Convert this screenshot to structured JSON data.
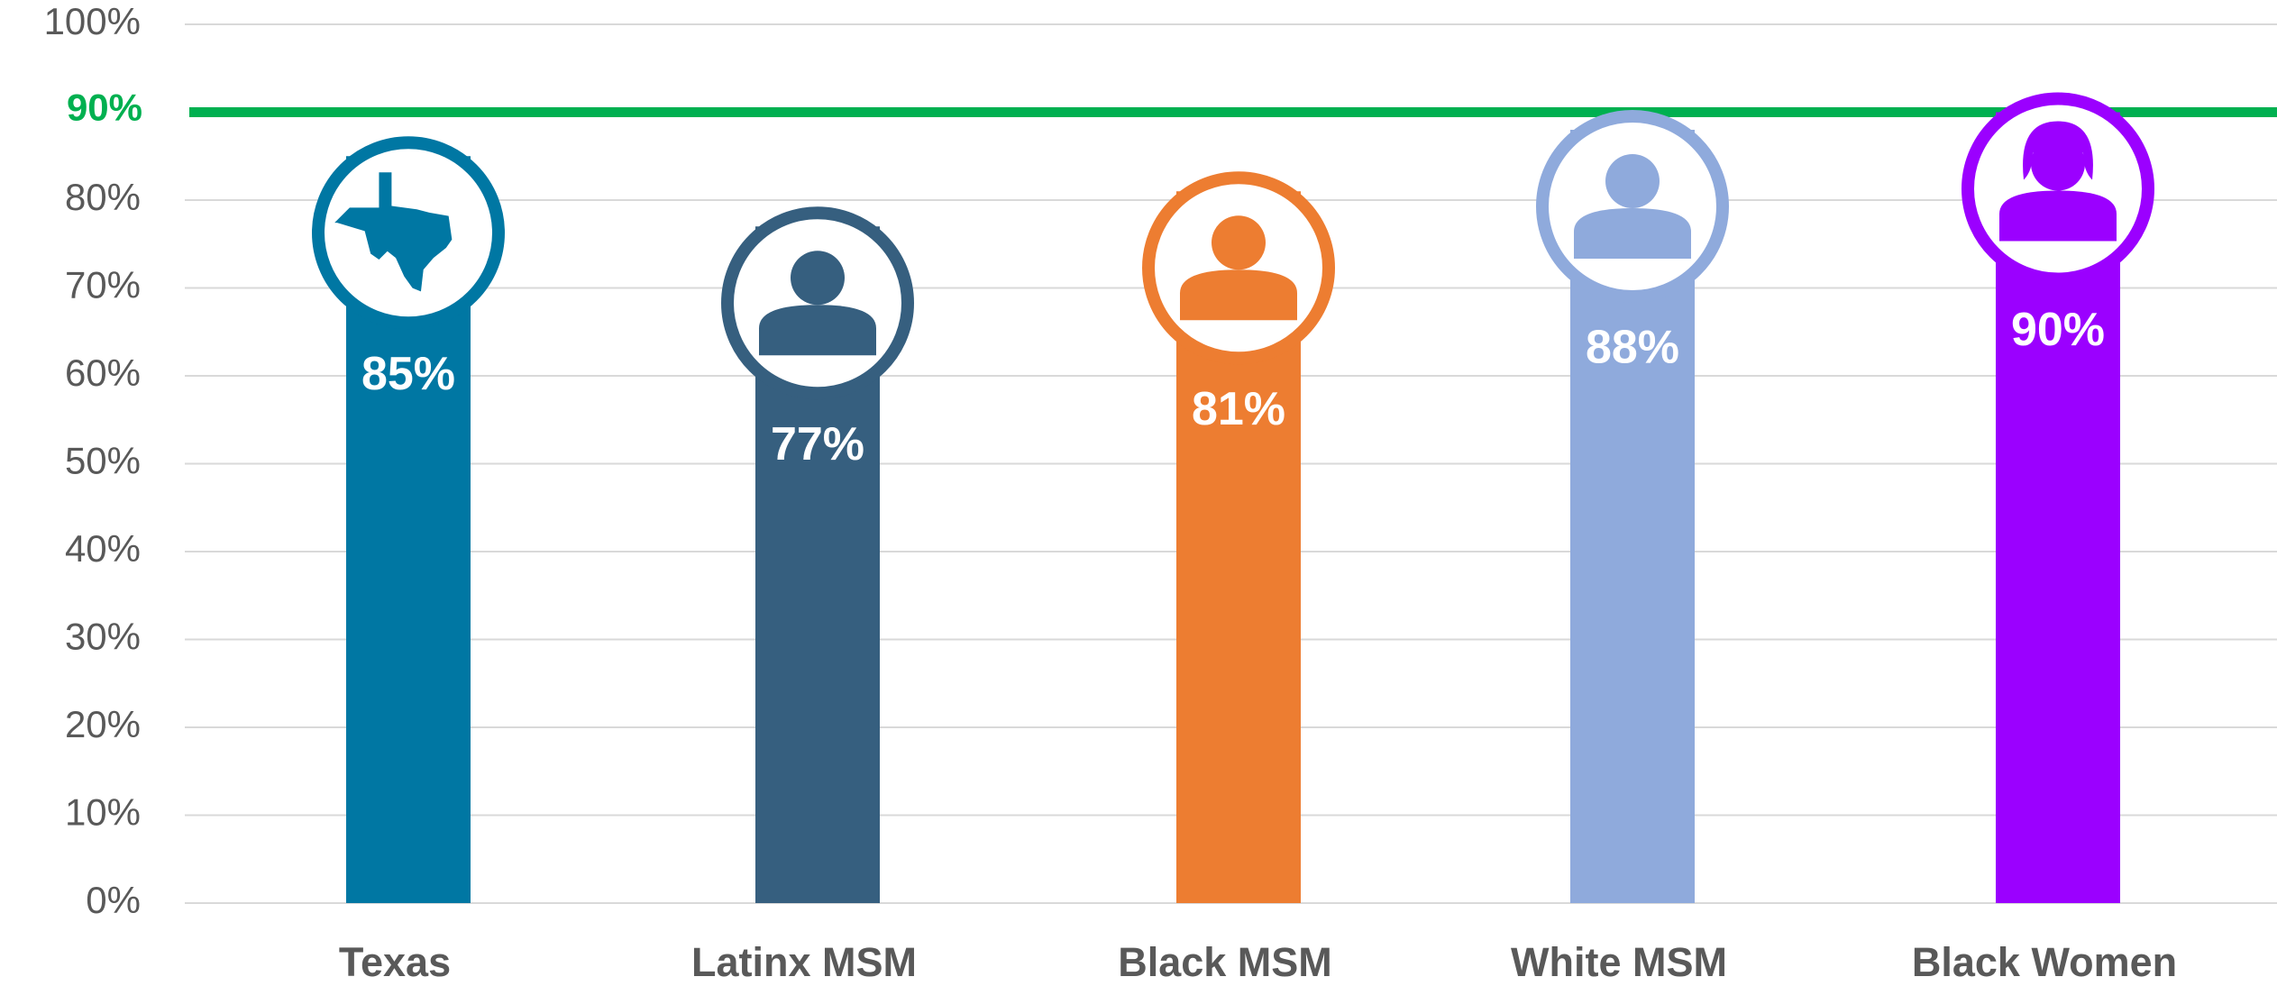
{
  "chart_data": {
    "type": "bar",
    "categories": [
      "Texas",
      "Latinx MSM",
      "Black MSM",
      "White MSM",
      "Black Women"
    ],
    "values": [
      85,
      77,
      81,
      88,
      90
    ],
    "value_labels": [
      "85%",
      "77%",
      "81%",
      "88%",
      "90%"
    ],
    "colors": [
      "#0077a3",
      "#365f7f",
      "#ed7d31",
      "#8faadc",
      "#9b00ff"
    ],
    "ylim": [
      0,
      100
    ],
    "yticks": [
      {
        "value": 0,
        "label": "0%"
      },
      {
        "value": 10,
        "label": "10%"
      },
      {
        "value": 20,
        "label": "20%"
      },
      {
        "value": 30,
        "label": "30%"
      },
      {
        "value": 40,
        "label": "40%"
      },
      {
        "value": 50,
        "label": "50%"
      },
      {
        "value": 60,
        "label": "60%"
      },
      {
        "value": 70,
        "label": "70%"
      },
      {
        "value": 80,
        "label": "80%"
      },
      {
        "value": 100,
        "label": "100%"
      }
    ],
    "grid": true,
    "target": {
      "value": 90,
      "label": "90%",
      "color": "#00b050"
    }
  }
}
